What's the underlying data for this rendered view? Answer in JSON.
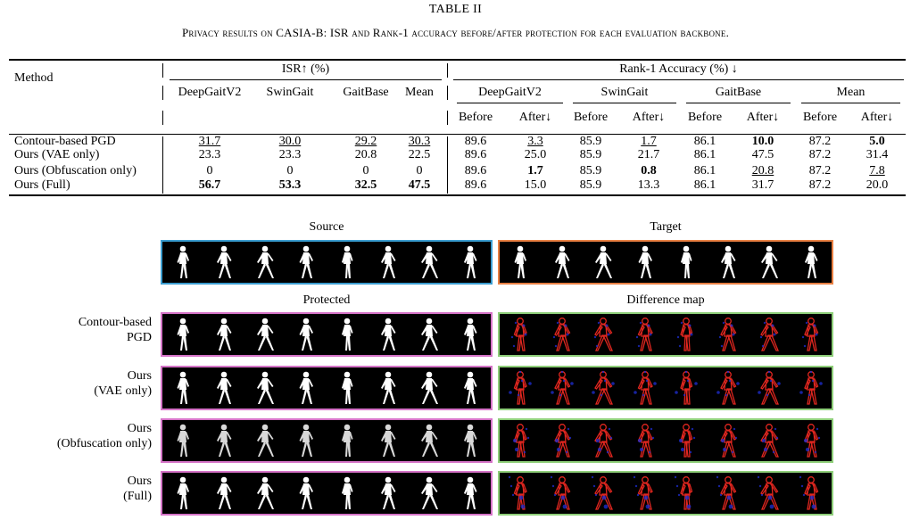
{
  "caption": {
    "title": "TABLE II",
    "subtitle": "Privacy results on CASIA-B: ISR and Rank-1 accuracy before/after protection for each evaluation backbone."
  },
  "table": {
    "method_header": "Method",
    "isr_header": "ISR↑ (%)",
    "rank_header": "Rank-1 Accuracy (%) ↓",
    "isr_cols": [
      "DeepGaitV2",
      "SwinGait",
      "GaitBase",
      "Mean"
    ],
    "rank_groups": [
      "DeepGaitV2",
      "SwinGait",
      "GaitBase",
      "Mean"
    ],
    "before_label": "Before",
    "after_label": "After↓",
    "rows": [
      {
        "method": "Contour-based PGD",
        "isr": [
          {
            "v": "31.7",
            "s": "u"
          },
          {
            "v": "30.0",
            "s": "u"
          },
          {
            "v": "29.2",
            "s": "u"
          },
          {
            "v": "30.3",
            "s": "u"
          }
        ],
        "rank": [
          {
            "v": "89.6",
            "s": ""
          },
          {
            "v": "3.3",
            "s": "u"
          },
          {
            "v": "85.9",
            "s": ""
          },
          {
            "v": "1.7",
            "s": "u"
          },
          {
            "v": "86.1",
            "s": ""
          },
          {
            "v": "10.0",
            "s": "b"
          },
          {
            "v": "87.2",
            "s": ""
          },
          {
            "v": "5.0",
            "s": "b"
          }
        ]
      },
      {
        "method": "Ours (VAE only)",
        "isr": [
          {
            "v": "23.3",
            "s": ""
          },
          {
            "v": "23.3",
            "s": ""
          },
          {
            "v": "20.8",
            "s": ""
          },
          {
            "v": "22.5",
            "s": ""
          }
        ],
        "rank": [
          {
            "v": "89.6",
            "s": ""
          },
          {
            "v": "25.0",
            "s": ""
          },
          {
            "v": "85.9",
            "s": ""
          },
          {
            "v": "21.7",
            "s": ""
          },
          {
            "v": "86.1",
            "s": ""
          },
          {
            "v": "47.5",
            "s": ""
          },
          {
            "v": "87.2",
            "s": ""
          },
          {
            "v": "31.4",
            "s": ""
          }
        ]
      },
      {
        "method": "Ours (Obfuscation only)",
        "isr": [
          {
            "v": "0",
            "s": ""
          },
          {
            "v": "0",
            "s": ""
          },
          {
            "v": "0",
            "s": ""
          },
          {
            "v": "0",
            "s": ""
          }
        ],
        "rank": [
          {
            "v": "89.6",
            "s": ""
          },
          {
            "v": "1.7",
            "s": "b"
          },
          {
            "v": "85.9",
            "s": ""
          },
          {
            "v": "0.8",
            "s": "b"
          },
          {
            "v": "86.1",
            "s": ""
          },
          {
            "v": "20.8",
            "s": "u"
          },
          {
            "v": "87.2",
            "s": ""
          },
          {
            "v": "7.8",
            "s": "u"
          }
        ]
      },
      {
        "method": "Ours (Full)",
        "isr": [
          {
            "v": "56.7",
            "s": "b"
          },
          {
            "v": "53.3",
            "s": "b"
          },
          {
            "v": "32.5",
            "s": "b"
          },
          {
            "v": "47.5",
            "s": "b"
          }
        ],
        "rank": [
          {
            "v": "89.6",
            "s": ""
          },
          {
            "v": "15.0",
            "s": ""
          },
          {
            "v": "85.9",
            "s": ""
          },
          {
            "v": "13.3",
            "s": ""
          },
          {
            "v": "86.1",
            "s": ""
          },
          {
            "v": "31.7",
            "s": ""
          },
          {
            "v": "87.2",
            "s": ""
          },
          {
            "v": "20.0",
            "s": ""
          }
        ]
      }
    ]
  },
  "figure": {
    "source_title": "Source",
    "target_title": "Target",
    "protected_title": "Protected",
    "diff_title": "Difference map",
    "rows": [
      {
        "label1": "Contour-based",
        "label2": "PGD"
      },
      {
        "label1": "Ours",
        "label2": "(VAE only)"
      },
      {
        "label1": "Ours",
        "label2": "(Obfuscation only)"
      },
      {
        "label1": "Ours",
        "label2": "(Full)"
      }
    ],
    "colors": {
      "source_border": "#3b9dd0",
      "target_border": "#e98043",
      "protected_border": "#d674c8",
      "diff_border": "#8fcf7a",
      "diff_red": "#e0261f",
      "diff_blue": "#1f2fd6"
    }
  }
}
